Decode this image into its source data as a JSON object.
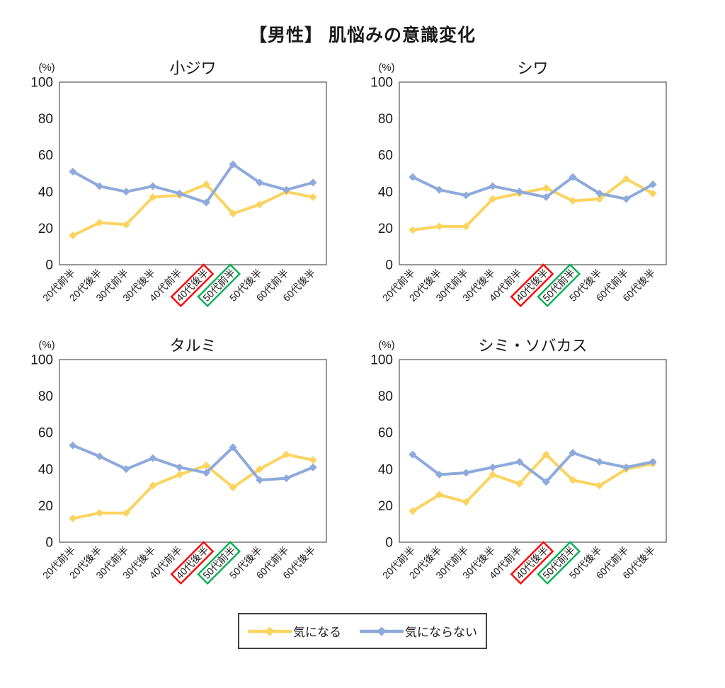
{
  "page": {
    "title": "【男性】 肌悩みの意識変化",
    "percent_label": "(%)"
  },
  "legend": {
    "position": "bottom-center",
    "items": [
      {
        "label": "気になる",
        "color": "#FBD35F"
      },
      {
        "label": "気にならない",
        "color": "#8EA9DB"
      }
    ]
  },
  "highlights": [
    {
      "category": "40代後半",
      "color": "#FF0000"
    },
    {
      "category": "50代前半",
      "color": "#00B050"
    }
  ],
  "axis_style": {
    "border_color": "#7f7f7f",
    "tick_color": "#1a1a1a"
  },
  "chart_data": [
    {
      "type": "line",
      "title": "小ジワ",
      "ylabel": "(%)",
      "ylim": [
        0,
        100
      ],
      "y_ticks": [
        0,
        20,
        40,
        60,
        80,
        100
      ],
      "grid": false,
      "categories": [
        "20代前半",
        "20代後半",
        "30代前半",
        "30代後半",
        "40代前半",
        "40代後半",
        "50代前半",
        "50代後半",
        "60代前半",
        "60代後半"
      ],
      "series": [
        {
          "name": "気になる",
          "color": "#FBD35F",
          "values": [
            16,
            23,
            22,
            37,
            38,
            44,
            28,
            33,
            40,
            37
          ]
        },
        {
          "name": "気にならない",
          "color": "#8EA9DB",
          "values": [
            51,
            43,
            40,
            43,
            39,
            34,
            55,
            45,
            41,
            45
          ]
        }
      ]
    },
    {
      "type": "line",
      "title": "シワ",
      "ylabel": "(%)",
      "ylim": [
        0,
        100
      ],
      "y_ticks": [
        0,
        20,
        40,
        60,
        80,
        100
      ],
      "grid": false,
      "categories": [
        "20代前半",
        "20代後半",
        "30代前半",
        "30代後半",
        "40代前半",
        "40代後半",
        "50代前半",
        "50代後半",
        "60代前半",
        "60代後半"
      ],
      "series": [
        {
          "name": "気になる",
          "color": "#FBD35F",
          "values": [
            19,
            21,
            21,
            36,
            39,
            42,
            35,
            36,
            47,
            39
          ]
        },
        {
          "name": "気にならない",
          "color": "#8EA9DB",
          "values": [
            48,
            41,
            38,
            43,
            40,
            37,
            48,
            39,
            36,
            44
          ]
        }
      ]
    },
    {
      "type": "line",
      "title": "タルミ",
      "ylabel": "(%)",
      "ylim": [
        0,
        100
      ],
      "y_ticks": [
        0,
        20,
        40,
        60,
        80,
        100
      ],
      "grid": false,
      "categories": [
        "20代前半",
        "20代後半",
        "30代前半",
        "30代後半",
        "40代前半",
        "40代後半",
        "50代前半",
        "50代後半",
        "60代前半",
        "60代後半"
      ],
      "series": [
        {
          "name": "気になる",
          "color": "#FBD35F",
          "values": [
            13,
            16,
            16,
            31,
            37,
            42,
            30,
            40,
            48,
            45
          ]
        },
        {
          "name": "気にならない",
          "color": "#8EA9DB",
          "values": [
            53,
            47,
            40,
            46,
            41,
            38,
            52,
            34,
            35,
            41
          ]
        }
      ]
    },
    {
      "type": "line",
      "title": "シミ・ソバカス",
      "ylabel": "(%)",
      "ylim": [
        0,
        100
      ],
      "y_ticks": [
        0,
        20,
        40,
        60,
        80,
        100
      ],
      "grid": false,
      "categories": [
        "20代前半",
        "20代後半",
        "30代前半",
        "30代後半",
        "40代前半",
        "40代後半",
        "50代前半",
        "50代後半",
        "60代前半",
        "60代後半"
      ],
      "series": [
        {
          "name": "気になる",
          "color": "#FBD35F",
          "values": [
            17,
            26,
            22,
            37,
            32,
            48,
            34,
            31,
            40,
            43
          ]
        },
        {
          "name": "気にならない",
          "color": "#8EA9DB",
          "values": [
            48,
            37,
            38,
            41,
            44,
            33,
            49,
            44,
            41,
            44
          ]
        }
      ]
    }
  ]
}
